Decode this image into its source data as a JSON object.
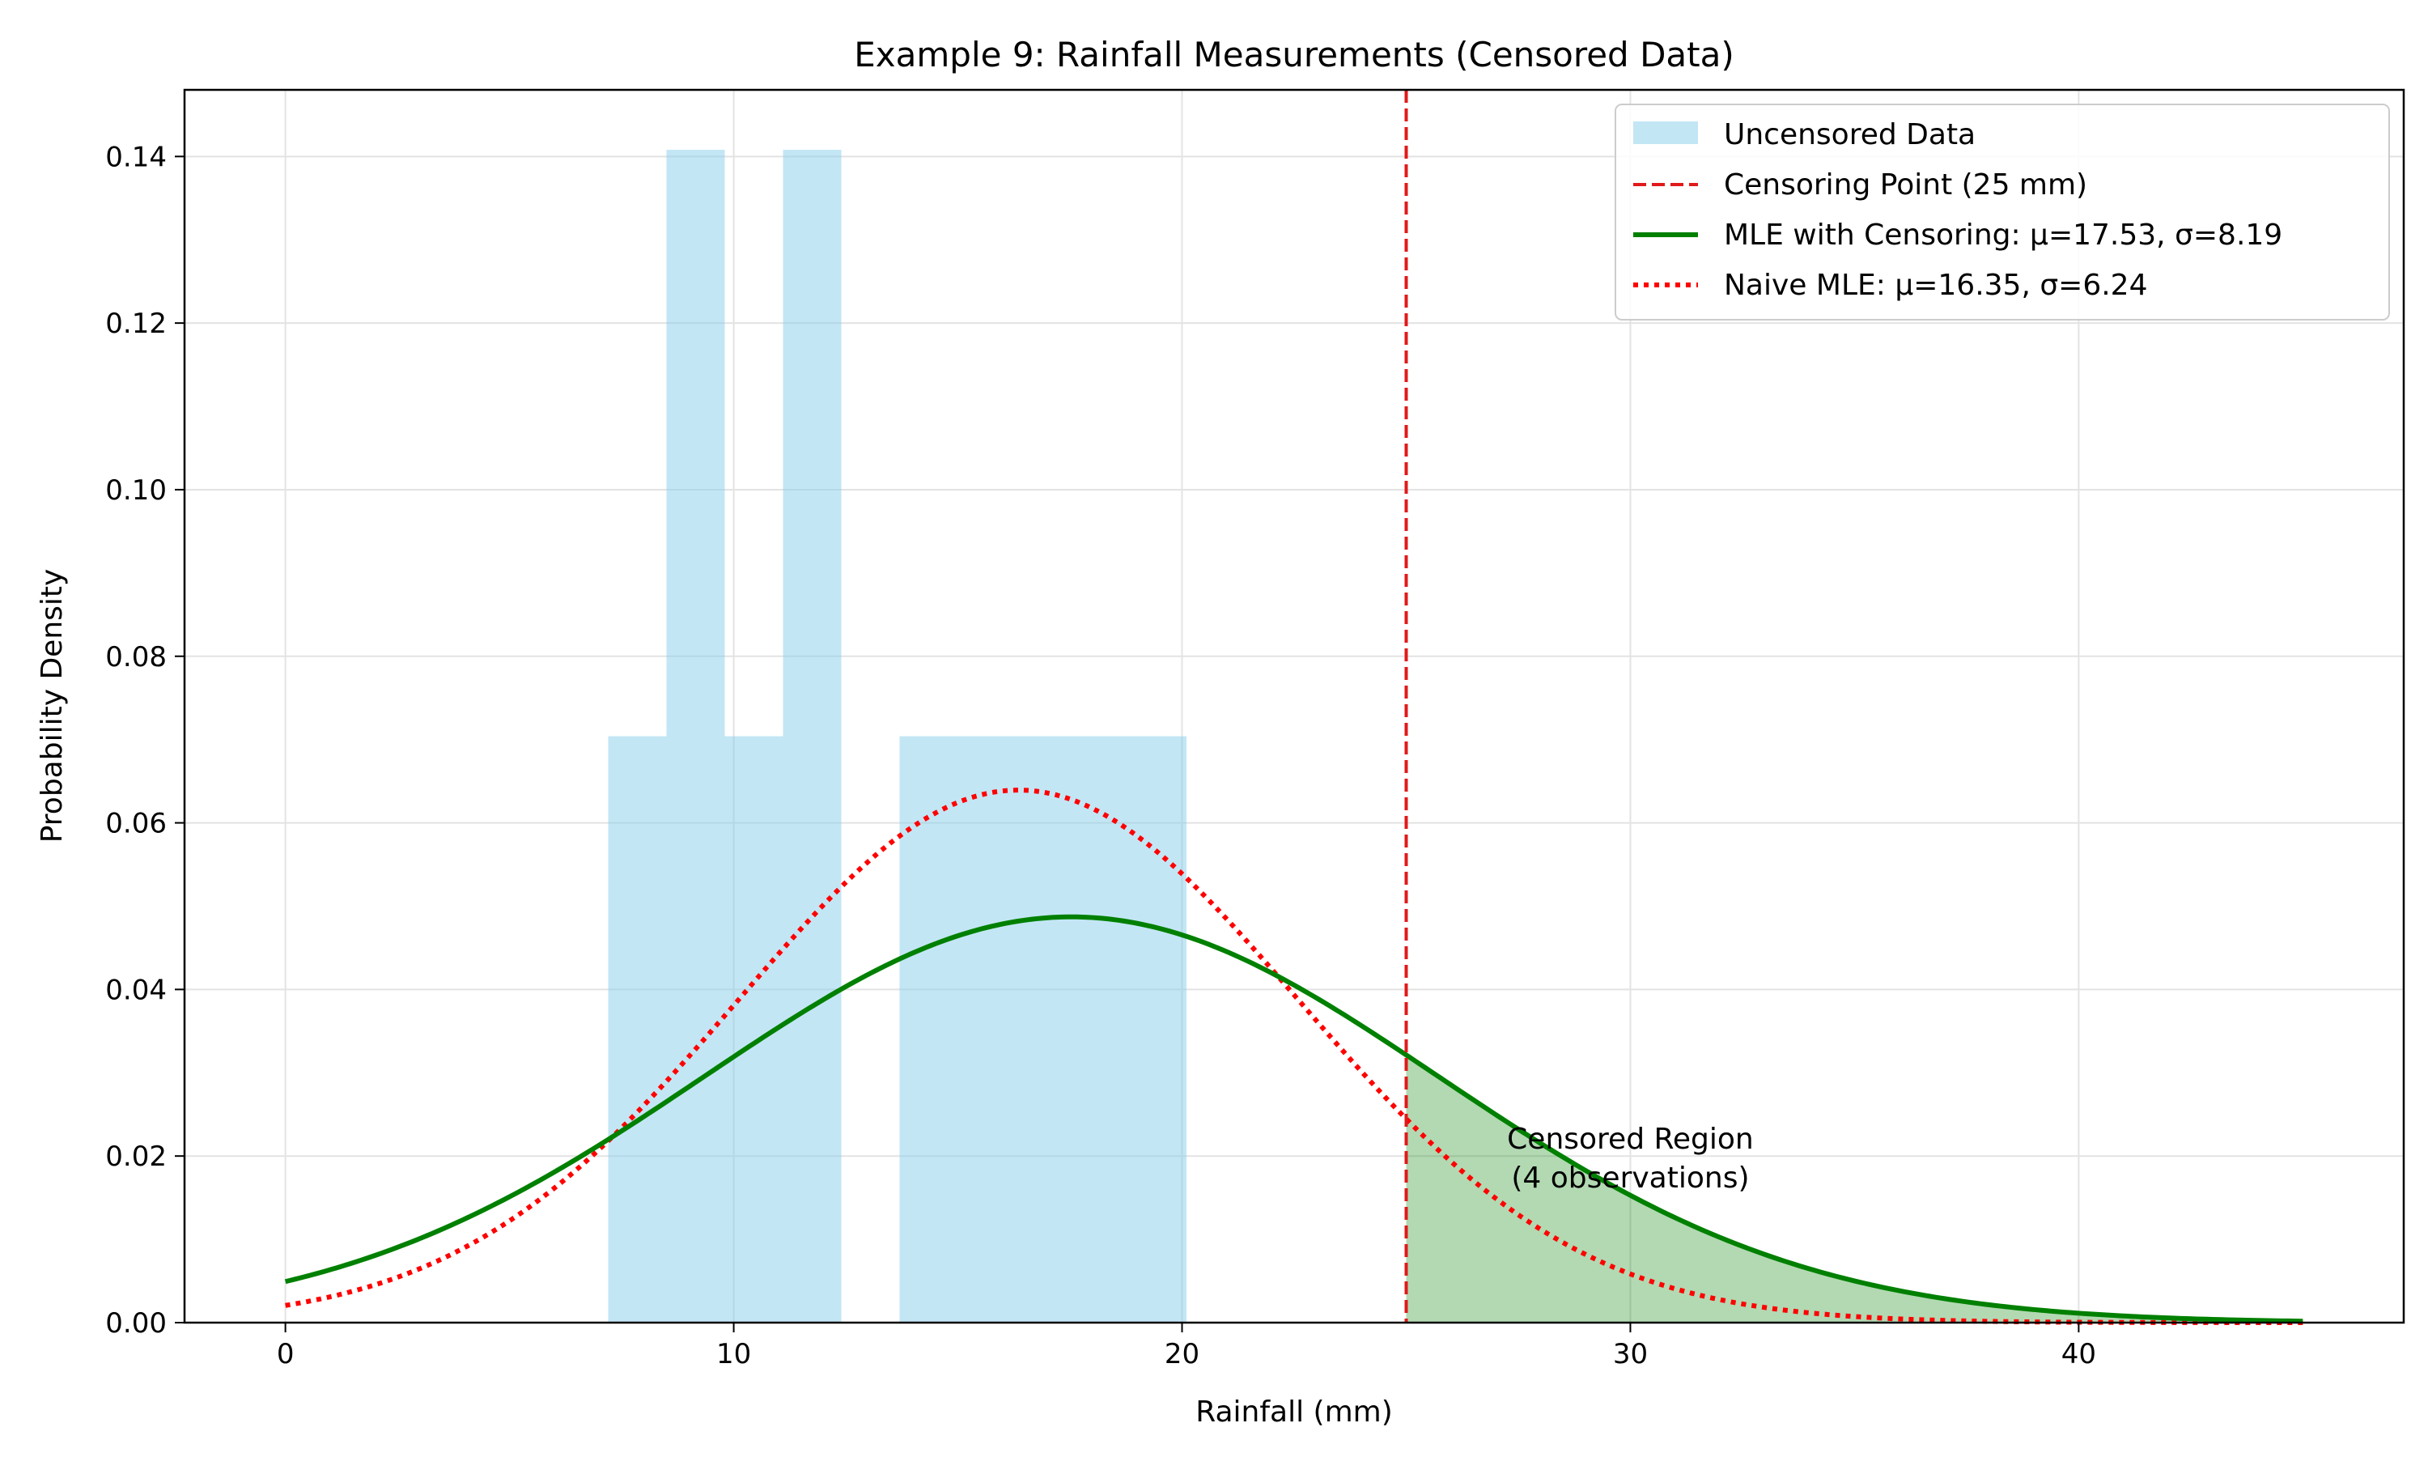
{
  "chart_data": {
    "type": "histogram-with-curves",
    "title": "Example 9: Rainfall Measurements (Censored Data)",
    "xlabel": "Rainfall (mm)",
    "ylabel": "Probability Density",
    "xlim": [
      -2.25,
      47.25
    ],
    "ylim": [
      0,
      0.148
    ],
    "xticks": [
      0,
      10,
      20,
      30,
      40
    ],
    "yticks": [
      0.0,
      0.02,
      0.04,
      0.06,
      0.08,
      0.1,
      0.12,
      0.14
    ],
    "x_tick_labels": [
      "0",
      "10",
      "20",
      "30",
      "40"
    ],
    "y_tick_labels": [
      "0.00",
      "0.02",
      "0.04",
      "0.06",
      "0.08",
      "0.10",
      "0.12",
      "0.14"
    ],
    "grid": true,
    "legend_position": "top-right",
    "histogram": {
      "name": "Uncensored Data",
      "color": "#87ceeb",
      "bins": [
        {
          "x0": 7.2,
          "x1": 8.5,
          "density": 0.0704
        },
        {
          "x0": 8.5,
          "x1": 9.8,
          "density": 0.1408
        },
        {
          "x0": 9.8,
          "x1": 11.1,
          "density": 0.0704
        },
        {
          "x0": 11.1,
          "x1": 12.4,
          "density": 0.1408
        },
        {
          "x0": 13.7,
          "x1": 20.1,
          "density": 0.0704
        }
      ]
    },
    "censoring_point": {
      "name": "Censoring Point (25 mm)",
      "x": 25,
      "color": "#e01a1a"
    },
    "series": [
      {
        "name": "MLE with Censoring: μ=17.53, σ=8.19",
        "mu": 17.53,
        "sigma": 8.19,
        "style": "solid",
        "color": "#008000"
      },
      {
        "name": "Naive MLE: μ=16.35, σ=6.24",
        "mu": 16.35,
        "sigma": 6.24,
        "style": "dotted",
        "color": "#ff0000"
      }
    ],
    "curve_range": [
      0,
      45
    ],
    "censored_region": {
      "x_start": 25,
      "x_end": 45,
      "color": "#008000",
      "label_line1": "Censored Region",
      "label_line2": "(4 observations)",
      "label_x": 30,
      "label_y": 0.0205
    }
  }
}
